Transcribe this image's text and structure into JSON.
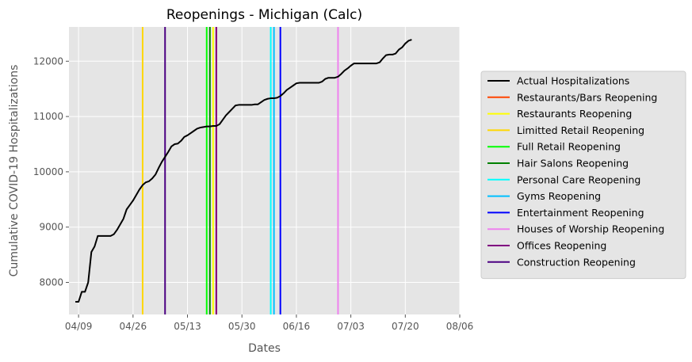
{
  "chart_data": {
    "type": "line",
    "title": "Reopenings - Michigan (Calc)",
    "xlabel": "Dates",
    "ylabel": "Cumulative COVID-19 Hospitalizations",
    "x_ticks": [
      "04/09",
      "04/26",
      "05/13",
      "05/30",
      "06/16",
      "07/03",
      "07/20",
      "08/06"
    ],
    "y_ticks": [
      8000,
      9000,
      10000,
      11000,
      12000
    ],
    "xlim": [
      "2020-04-06",
      "2020-08-06"
    ],
    "ylim": [
      7420,
      12620
    ],
    "grid": true,
    "legend_position": "right",
    "series": [
      {
        "name": "Actual Hospitalizations",
        "color": "#000000",
        "points": [
          [
            "2020-04-08",
            7650
          ],
          [
            "2020-04-09",
            7650
          ],
          [
            "2020-04-10",
            7830
          ],
          [
            "2020-04-11",
            7830
          ],
          [
            "2020-04-12",
            8000
          ],
          [
            "2020-04-13",
            8550
          ],
          [
            "2020-04-14",
            8650
          ],
          [
            "2020-04-15",
            8840
          ],
          [
            "2020-04-16",
            8840
          ],
          [
            "2020-04-17",
            8840
          ],
          [
            "2020-04-18",
            8840
          ],
          [
            "2020-04-19",
            8840
          ],
          [
            "2020-04-20",
            8870
          ],
          [
            "2020-04-21",
            8950
          ],
          [
            "2020-04-22",
            9050
          ],
          [
            "2020-04-23",
            9150
          ],
          [
            "2020-04-24",
            9320
          ],
          [
            "2020-04-25",
            9400
          ],
          [
            "2020-04-26",
            9480
          ],
          [
            "2020-04-27",
            9580
          ],
          [
            "2020-04-28",
            9680
          ],
          [
            "2020-04-29",
            9760
          ],
          [
            "2020-04-30",
            9810
          ],
          [
            "2020-05-01",
            9830
          ],
          [
            "2020-05-02",
            9880
          ],
          [
            "2020-05-03",
            9950
          ],
          [
            "2020-05-04",
            10070
          ],
          [
            "2020-05-05",
            10180
          ],
          [
            "2020-05-06",
            10270
          ],
          [
            "2020-05-07",
            10360
          ],
          [
            "2020-05-08",
            10460
          ],
          [
            "2020-05-09",
            10500
          ],
          [
            "2020-05-10",
            10510
          ],
          [
            "2020-05-11",
            10560
          ],
          [
            "2020-05-12",
            10630
          ],
          [
            "2020-05-13",
            10660
          ],
          [
            "2020-05-14",
            10700
          ],
          [
            "2020-05-15",
            10740
          ],
          [
            "2020-05-16",
            10780
          ],
          [
            "2020-05-17",
            10800
          ],
          [
            "2020-05-18",
            10810
          ],
          [
            "2020-05-19",
            10820
          ],
          [
            "2020-05-20",
            10820
          ],
          [
            "2020-05-21",
            10830
          ],
          [
            "2020-05-22",
            10830
          ],
          [
            "2020-05-23",
            10860
          ],
          [
            "2020-05-24",
            10940
          ],
          [
            "2020-05-25",
            11020
          ],
          [
            "2020-05-26",
            11080
          ],
          [
            "2020-05-27",
            11140
          ],
          [
            "2020-05-28",
            11200
          ],
          [
            "2020-05-29",
            11210
          ],
          [
            "2020-05-30",
            11210
          ],
          [
            "2020-05-31",
            11210
          ],
          [
            "2020-06-01",
            11210
          ],
          [
            "2020-06-02",
            11210
          ],
          [
            "2020-06-03",
            11220
          ],
          [
            "2020-06-04",
            11220
          ],
          [
            "2020-06-05",
            11260
          ],
          [
            "2020-06-06",
            11300
          ],
          [
            "2020-06-07",
            11320
          ],
          [
            "2020-06-08",
            11330
          ],
          [
            "2020-06-09",
            11330
          ],
          [
            "2020-06-10",
            11340
          ],
          [
            "2020-06-11",
            11370
          ],
          [
            "2020-06-12",
            11420
          ],
          [
            "2020-06-13",
            11480
          ],
          [
            "2020-06-14",
            11520
          ],
          [
            "2020-06-15",
            11560
          ],
          [
            "2020-06-16",
            11600
          ],
          [
            "2020-06-17",
            11610
          ],
          [
            "2020-06-18",
            11610
          ],
          [
            "2020-06-19",
            11610
          ],
          [
            "2020-06-20",
            11610
          ],
          [
            "2020-06-21",
            11610
          ],
          [
            "2020-06-22",
            11610
          ],
          [
            "2020-06-23",
            11610
          ],
          [
            "2020-06-24",
            11630
          ],
          [
            "2020-06-25",
            11680
          ],
          [
            "2020-06-26",
            11700
          ],
          [
            "2020-06-27",
            11700
          ],
          [
            "2020-06-28",
            11700
          ],
          [
            "2020-06-29",
            11720
          ],
          [
            "2020-06-30",
            11770
          ],
          [
            "2020-07-01",
            11830
          ],
          [
            "2020-07-02",
            11870
          ],
          [
            "2020-07-03",
            11920
          ],
          [
            "2020-07-04",
            11960
          ],
          [
            "2020-07-05",
            11960
          ],
          [
            "2020-07-06",
            11960
          ],
          [
            "2020-07-07",
            11960
          ],
          [
            "2020-07-08",
            11960
          ],
          [
            "2020-07-09",
            11960
          ],
          [
            "2020-07-10",
            11960
          ],
          [
            "2020-07-11",
            11960
          ],
          [
            "2020-07-12",
            11980
          ],
          [
            "2020-07-13",
            12050
          ],
          [
            "2020-07-14",
            12110
          ],
          [
            "2020-07-15",
            12120
          ],
          [
            "2020-07-16",
            12120
          ],
          [
            "2020-07-17",
            12140
          ],
          [
            "2020-07-18",
            12210
          ],
          [
            "2020-07-19",
            12250
          ],
          [
            "2020-07-20",
            12320
          ],
          [
            "2020-07-21",
            12370
          ],
          [
            "2020-07-22",
            12390
          ]
        ]
      }
    ],
    "reopenings": [
      {
        "name": "Restaurants/Bars Reopening",
        "color": "#ff4500",
        "date": "2020-05-22"
      },
      {
        "name": "Restaurants Reopening",
        "color": "#ffff00",
        "date": "2020-05-21"
      },
      {
        "name": "Limitted Retail Reopening",
        "color": "#ffd700",
        "date": "2020-04-29"
      },
      {
        "name": "Full Retail Reopening",
        "color": "#00ff00",
        "date": "2020-05-19"
      },
      {
        "name": "Hair Salons Reopening",
        "color": "#008000",
        "date": "2020-05-20"
      },
      {
        "name": "Personal Care Reopening",
        "color": "#00ffff",
        "date": "2020-06-08"
      },
      {
        "name": "Gyms Reopening",
        "color": "#00bfff",
        "date": "2020-06-09"
      },
      {
        "name": "Entertainment Reopening",
        "color": "#0000ff",
        "date": "2020-06-11"
      },
      {
        "name": "Houses of Worship Reopening",
        "color": "#ee82ee",
        "date": "2020-06-29"
      },
      {
        "name": "Offices Reopening",
        "color": "#800080",
        "date": "2020-05-22"
      },
      {
        "name": "Construction Reopening",
        "color": "#4b0082",
        "date": "2020-05-06"
      }
    ]
  }
}
